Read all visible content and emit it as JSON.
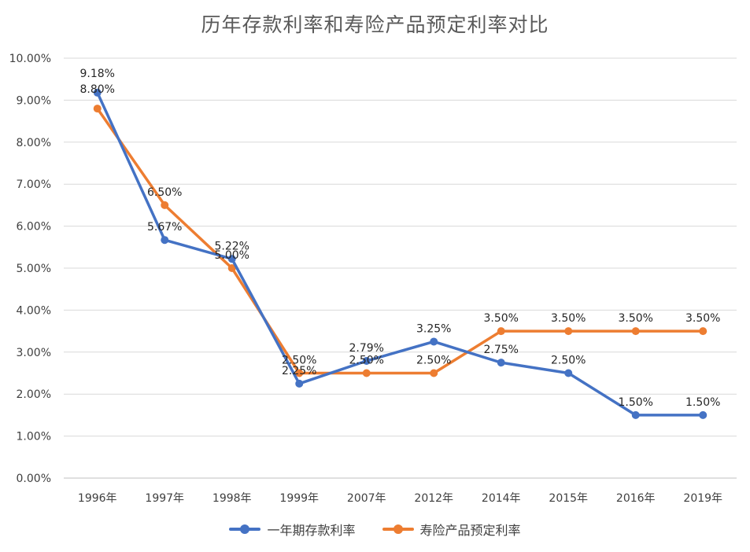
{
  "chart_data": {
    "type": "line",
    "title": "历年存款利率和寿险产品预定利率对比",
    "categories": [
      "1996年",
      "1997年",
      "1998年",
      "1999年",
      "2007年",
      "2012年",
      "2014年",
      "2015年",
      "2016年",
      "2019年"
    ],
    "ylim": [
      0,
      10
    ],
    "yticks": [
      "0.00%",
      "1.00%",
      "2.00%",
      "3.00%",
      "4.00%",
      "5.00%",
      "6.00%",
      "7.00%",
      "8.00%",
      "9.00%",
      "10.00%"
    ],
    "grid": true,
    "legend_position": "bottom",
    "series": [
      {
        "name": "一年期存款利率",
        "color": "#4472C4",
        "values": [
          9.18,
          5.67,
          5.22,
          2.25,
          2.79,
          3.25,
          2.75,
          2.5,
          1.5,
          1.5
        ],
        "labels": [
          "9.18%",
          "5.67%",
          "5.22%",
          "2.25%",
          "2.79%",
          "3.25%",
          "2.75%",
          "2.50%",
          "1.50%",
          "1.50%"
        ]
      },
      {
        "name": "寿险产品预定利率",
        "color": "#ED7D31",
        "values": [
          8.8,
          6.5,
          5.0,
          2.5,
          2.5,
          2.5,
          3.5,
          3.5,
          3.5,
          3.5
        ],
        "labels": [
          "8.80%",
          "6.50%",
          "5.00%",
          "2.50%",
          "2.50%",
          "2.50%",
          "3.50%",
          "3.50%",
          "3.50%",
          "3.50%"
        ]
      }
    ]
  }
}
